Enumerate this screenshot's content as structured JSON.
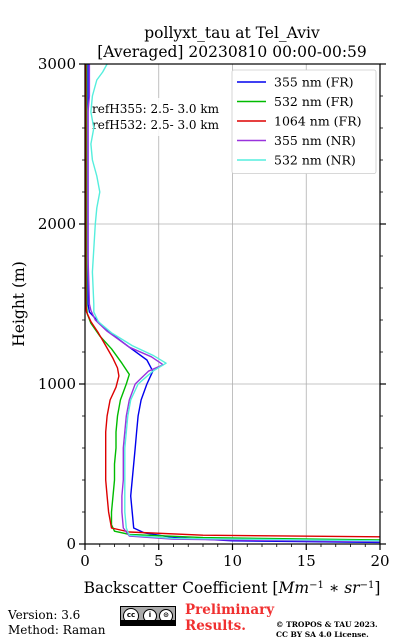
{
  "chart_data": {
    "type": "line",
    "title": "pollyxt_tau at Tel_Aviv",
    "subtitle": "[Averaged] 20230810 00:00-00:59",
    "xlabel_text": "Backscatter Coefficient [",
    "xlabel_unit_1": "Mm",
    "xlabel_unit_exp_1": "−1",
    "xlabel_unit_mid": " ∗ ",
    "xlabel_unit_2": "sr",
    "xlabel_unit_exp_2": "−1",
    "xlabel_close": "]",
    "ylabel": "Height (m)",
    "xlim": [
      0,
      20
    ],
    "ylim": [
      0,
      3000
    ],
    "xticks": [
      0,
      5,
      10,
      15,
      20
    ],
    "yticks": [
      0,
      1000,
      2000,
      3000
    ],
    "grid": true,
    "legend_position": "top-right",
    "annotations": [
      "refH355:  2.5- 3.0 km",
      "refH532:  2.5- 3.0 km"
    ],
    "series": [
      {
        "name": "355 nm (FR)",
        "color": "#0000ee",
        "points": [
          [
            20,
            10
          ],
          [
            10,
            20
          ],
          [
            6,
            40
          ],
          [
            4,
            70
          ],
          [
            3.3,
            100
          ],
          [
            3.2,
            200
          ],
          [
            3.1,
            300
          ],
          [
            3.2,
            400
          ],
          [
            3.3,
            500
          ],
          [
            3.4,
            600
          ],
          [
            3.5,
            700
          ],
          [
            3.6,
            800
          ],
          [
            3.8,
            900
          ],
          [
            4.2,
            1000
          ],
          [
            4.6,
            1080
          ],
          [
            4.2,
            1150
          ],
          [
            3,
            1230
          ],
          [
            2,
            1300
          ],
          [
            1.2,
            1360
          ],
          [
            0.7,
            1410
          ],
          [
            0.3,
            1450
          ],
          [
            0.2,
            1500
          ],
          [
            0.2,
            1700
          ],
          [
            0.2,
            2000
          ],
          [
            0.2,
            2500
          ],
          [
            0.2,
            3000
          ]
        ]
      },
      {
        "name": "532 nm (FR)",
        "color": "#00bb00",
        "points": [
          [
            20,
            25
          ],
          [
            8,
            40
          ],
          [
            3,
            60
          ],
          [
            2,
            80
          ],
          [
            1.8,
            120
          ],
          [
            1.8,
            200
          ],
          [
            1.9,
            300
          ],
          [
            2,
            400
          ],
          [
            2,
            500
          ],
          [
            2.1,
            600
          ],
          [
            2.1,
            700
          ],
          [
            2.2,
            800
          ],
          [
            2.4,
            900
          ],
          [
            2.8,
            1000
          ],
          [
            3,
            1060
          ],
          [
            2.5,
            1130
          ],
          [
            1.8,
            1220
          ],
          [
            1,
            1300
          ],
          [
            0.4,
            1380
          ],
          [
            0.15,
            1440
          ],
          [
            0.1,
            1500
          ],
          [
            0.1,
            2000
          ],
          [
            0.1,
            2500
          ],
          [
            0.1,
            3000
          ]
        ]
      },
      {
        "name": "1064 nm (FR)",
        "color": "#dd0000",
        "points": [
          [
            20,
            45
          ],
          [
            8,
            55
          ],
          [
            3,
            75
          ],
          [
            1.8,
            100
          ],
          [
            1.6,
            200
          ],
          [
            1.5,
            300
          ],
          [
            1.4,
            400
          ],
          [
            1.4,
            500
          ],
          [
            1.4,
            600
          ],
          [
            1.4,
            700
          ],
          [
            1.5,
            800
          ],
          [
            1.7,
            900
          ],
          [
            2.1,
            980
          ],
          [
            2.3,
            1050
          ],
          [
            2.2,
            1100
          ],
          [
            1.9,
            1160
          ],
          [
            1.4,
            1240
          ],
          [
            0.9,
            1320
          ],
          [
            0.4,
            1390
          ],
          [
            0.1,
            1450
          ],
          [
            0.05,
            1500
          ],
          [
            0.05,
            2000
          ],
          [
            0.05,
            2500
          ],
          [
            0.05,
            3000
          ]
        ]
      },
      {
        "name": "355 nm (NR)",
        "color": "#9933dd",
        "points": [
          [
            20,
            15
          ],
          [
            6,
            30
          ],
          [
            3,
            50
          ],
          [
            2.6,
            100
          ],
          [
            2.5,
            200
          ],
          [
            2.5,
            300
          ],
          [
            2.6,
            400
          ],
          [
            2.6,
            500
          ],
          [
            2.6,
            600
          ],
          [
            2.7,
            700
          ],
          [
            2.8,
            800
          ],
          [
            3,
            900
          ],
          [
            3.4,
            1000
          ],
          [
            4.3,
            1080
          ],
          [
            5.3,
            1120
          ],
          [
            4.5,
            1170
          ],
          [
            3,
            1230
          ],
          [
            1.5,
            1330
          ],
          [
            0.7,
            1400
          ],
          [
            0.4,
            1460
          ],
          [
            0.3,
            1500
          ],
          [
            0.2,
            1800
          ],
          [
            0.2,
            2100
          ],
          [
            0.2,
            2300
          ],
          [
            0.2,
            2500
          ],
          [
            0.2,
            2600
          ],
          [
            0.2,
            2700
          ],
          [
            0.3,
            2800
          ],
          [
            0.3,
            2900
          ],
          [
            0.3,
            3000
          ]
        ]
      },
      {
        "name": "532 nm (NR)",
        "color": "#55eedd",
        "points": [
          [
            20,
            20
          ],
          [
            6,
            35
          ],
          [
            3,
            55
          ],
          [
            2.8,
            100
          ],
          [
            2.7,
            200
          ],
          [
            2.7,
            300
          ],
          [
            2.7,
            400
          ],
          [
            2.7,
            500
          ],
          [
            2.7,
            600
          ],
          [
            2.8,
            700
          ],
          [
            2.9,
            800
          ],
          [
            3.1,
            900
          ],
          [
            3.6,
            1000
          ],
          [
            4.6,
            1080
          ],
          [
            5.5,
            1130
          ],
          [
            4.6,
            1180
          ],
          [
            3.2,
            1240
          ],
          [
            1.8,
            1320
          ],
          [
            0.9,
            1390
          ],
          [
            0.6,
            1450
          ],
          [
            0.6,
            1500
          ],
          [
            0.5,
            1700
          ],
          [
            0.7,
            2000
          ],
          [
            0.8,
            2100
          ],
          [
            1,
            2200
          ],
          [
            0.8,
            2300
          ],
          [
            0.5,
            2400
          ],
          [
            0.4,
            2500
          ],
          [
            0.6,
            2600
          ],
          [
            0.4,
            2700
          ],
          [
            0.5,
            2800
          ],
          [
            0.8,
            2900
          ],
          [
            1.2,
            2950
          ],
          [
            1.5,
            3000
          ]
        ]
      }
    ]
  },
  "footer": {
    "version": "Version: 3.6",
    "method": "Method: Raman",
    "prelim_line1": "Preliminary",
    "prelim_line2": "Results.",
    "copyright_line1": "© TROPOS & TAU 2023.",
    "copyright_line2": "CC BY SA 4.0 License.",
    "license_badge_icons": [
      "cc-icon",
      "by-icon",
      "sa-icon"
    ],
    "license_badge_text": [
      "cc",
      "i",
      "⊙"
    ]
  }
}
